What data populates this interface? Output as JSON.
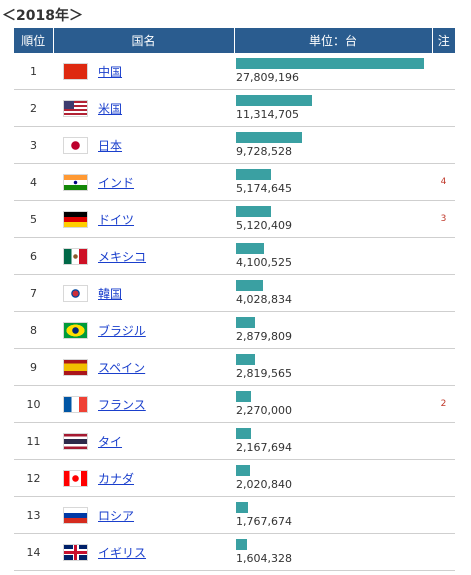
{
  "caption": "＜2018年＞",
  "headers": {
    "rank": "順位",
    "country": "国名",
    "value": "単位：台",
    "note": "注"
  },
  "accent_color": "#3aa0a2",
  "header_color": "#2a5c8f",
  "chart_data": {
    "type": "bar",
    "orientation": "horizontal",
    "title": "＜2018年＞",
    "unit": "台",
    "categories": [
      "中国",
      "米国",
      "日本",
      "インド",
      "ドイツ",
      "メキシコ",
      "韓国",
      "ブラジル",
      "スペイン",
      "フランス",
      "タイ",
      "カナダ",
      "ロシア",
      "イギリス"
    ],
    "values": [
      27809196,
      11314705,
      9728528,
      5174645,
      5120409,
      4100525,
      4028834,
      2879809,
      2819565,
      2270000,
      2167694,
      2020840,
      1767674,
      1604328
    ]
  },
  "rows": [
    {
      "rank": "1",
      "country": "中国",
      "value": "27,809,196",
      "note": "",
      "flag": "china-flag-icon"
    },
    {
      "rank": "2",
      "country": "米国",
      "value": "11,314,705",
      "note": "",
      "flag": "usa-flag-icon"
    },
    {
      "rank": "3",
      "country": "日本",
      "value": "9,728,528",
      "note": "",
      "flag": "japan-flag-icon"
    },
    {
      "rank": "4",
      "country": "インド",
      "value": "5,174,645",
      "note": "4",
      "flag": "india-flag-icon"
    },
    {
      "rank": "5",
      "country": "ドイツ",
      "value": "5,120,409",
      "note": "3",
      "flag": "germany-flag-icon"
    },
    {
      "rank": "6",
      "country": "メキシコ",
      "value": "4,100,525",
      "note": "",
      "flag": "mexico-flag-icon"
    },
    {
      "rank": "7",
      "country": "韓国",
      "value": "4,028,834",
      "note": "",
      "flag": "korea-flag-icon"
    },
    {
      "rank": "8",
      "country": "ブラジル",
      "value": "2,879,809",
      "note": "",
      "flag": "brazil-flag-icon"
    },
    {
      "rank": "9",
      "country": "スペイン",
      "value": "2,819,565",
      "note": "",
      "flag": "spain-flag-icon"
    },
    {
      "rank": "10",
      "country": "フランス",
      "value": "2,270,000",
      "note": "2",
      "flag": "france-flag-icon"
    },
    {
      "rank": "11",
      "country": "タイ",
      "value": "2,167,694",
      "note": "",
      "flag": "thailand-flag-icon"
    },
    {
      "rank": "12",
      "country": "カナダ",
      "value": "2,020,840",
      "note": "",
      "flag": "canada-flag-icon"
    },
    {
      "rank": "13",
      "country": "ロシア",
      "value": "1,767,674",
      "note": "",
      "flag": "russia-flag-icon"
    },
    {
      "rank": "14",
      "country": "イギリス",
      "value": "1,604,328",
      "note": "",
      "flag": "uk-flag-icon"
    }
  ]
}
